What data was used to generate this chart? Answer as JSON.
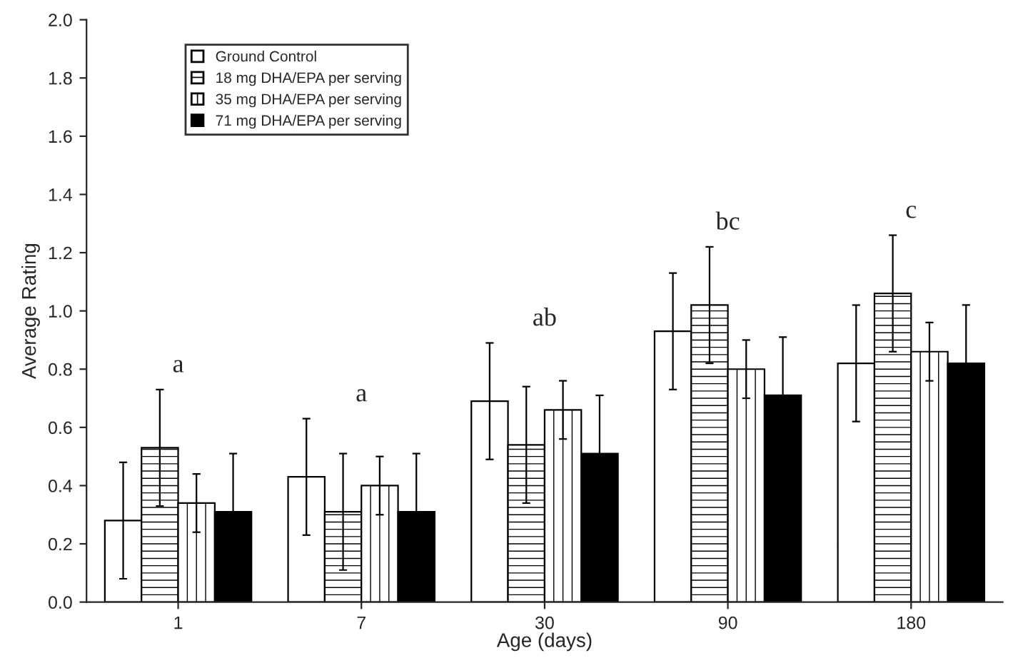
{
  "chart_data": {
    "type": "bar",
    "xlabel": "Age (days)",
    "ylabel": "Average Rating",
    "categories": [
      "1",
      "7",
      "30",
      "90",
      "180"
    ],
    "series": [
      {
        "name": "Ground Control",
        "color": "#ffffff",
        "values": [
          0.28,
          0.43,
          0.69,
          0.93,
          0.82
        ],
        "errors": [
          0.2,
          0.2,
          0.2,
          0.2,
          0.2
        ]
      },
      {
        "name": "18 mg DHA/EPA per serving",
        "color": "#ffffff",
        "values": [
          0.53,
          0.31,
          0.54,
          1.02,
          1.06
        ],
        "errors": [
          0.2,
          0.2,
          0.2,
          0.2,
          0.2
        ]
      },
      {
        "name": "35 mg DHA/EPA per serving",
        "color": "#ffffff",
        "values": [
          0.34,
          0.4,
          0.66,
          0.8,
          0.86
        ],
        "errors": [
          0.1,
          0.1,
          0.1,
          0.1,
          0.1
        ]
      },
      {
        "name": "71 mg DHA/EPA per serving",
        "color": "#000000",
        "values": [
          0.31,
          0.31,
          0.51,
          0.71,
          0.82
        ],
        "errors": [
          0.2,
          0.2,
          0.2,
          0.2,
          0.2
        ]
      }
    ],
    "ylim": [
      0.0,
      2.0
    ],
    "yticks": [
      {
        "value": 0,
        "label": "0.0"
      },
      0.2,
      0.4,
      0.6,
      0.8,
      {
        "value": 1,
        "label": "1.0"
      },
      1.2,
      1.4,
      1.6,
      1.8,
      {
        "value": 2,
        "label": "2.0"
      }
    ],
    "grid": false,
    "legend": "top left",
    "annotations": [
      "a",
      "a",
      "ab",
      "bc",
      "c"
    ]
  }
}
